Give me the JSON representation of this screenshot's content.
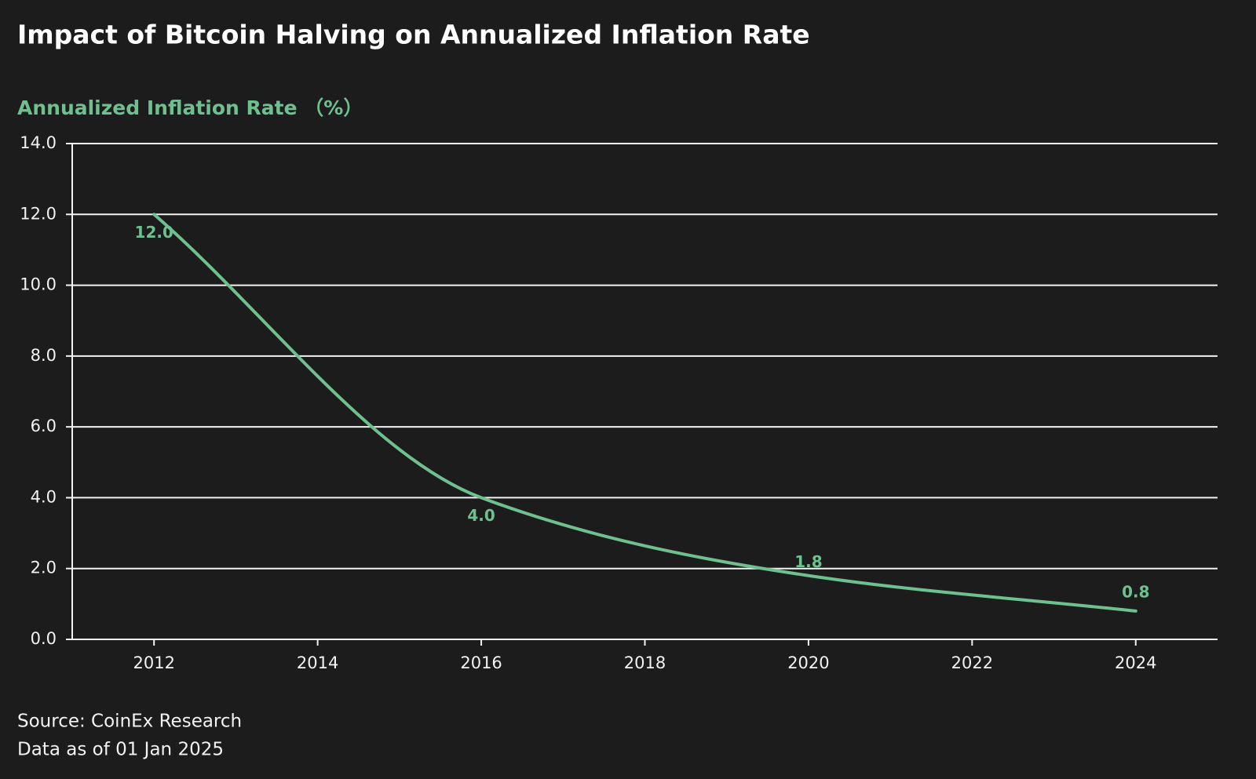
{
  "chart_data": {
    "type": "line",
    "title": "Impact of Bitcoin Halving on Annualized Inflation Rate",
    "y_label": "Annualized Inflation Rate （%）",
    "x": [
      2012,
      2016,
      2020,
      2024
    ],
    "values": [
      12.0,
      4.0,
      1.8,
      0.8
    ],
    "value_labels": [
      "12.0",
      "4.0",
      "1.8",
      "0.8"
    ],
    "color": "#6fc08f",
    "xlim": [
      2011,
      2025
    ],
    "xticks": [
      2012,
      2014,
      2016,
      2018,
      2020,
      2022,
      2024
    ],
    "ylim": [
      0,
      14
    ],
    "yticks": [
      {
        "value": 0,
        "label": "0.0"
      },
      {
        "value": 2,
        "label": "2.0"
      },
      {
        "value": 4,
        "label": "4.0"
      },
      {
        "value": 6,
        "label": "6.0"
      },
      {
        "value": 8,
        "label": "8.0"
      },
      {
        "value": 10,
        "label": "10.0"
      },
      {
        "value": 12,
        "label": "12.0"
      },
      {
        "value": 14,
        "label": "14.0"
      }
    ],
    "grid": true,
    "source": "Source: CoinEx Research",
    "note": "Data as of 01 Jan 2025"
  }
}
